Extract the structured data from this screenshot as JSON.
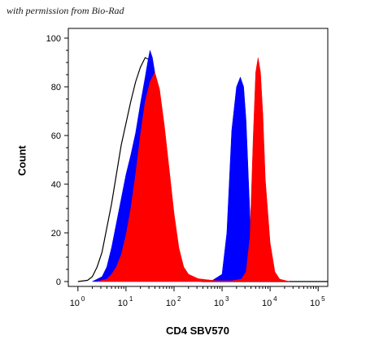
{
  "credit": "with permission from Bio-Rad",
  "chart_data": {
    "type": "area",
    "title": "",
    "xlabel": "CD4 SBV570",
    "ylabel": "Count",
    "xscale": "log",
    "xlim_log10": [
      -0.2,
      5.2
    ],
    "ylim": [
      -2,
      104
    ],
    "x_ticks": [
      {
        "base": "10",
        "exp": "0",
        "log": 0
      },
      {
        "base": "10",
        "exp": "1",
        "log": 1
      },
      {
        "base": "10",
        "exp": "2",
        "log": 2
      },
      {
        "base": "10",
        "exp": "3",
        "log": 3
      },
      {
        "base": "10",
        "exp": "4",
        "log": 4
      },
      {
        "base": "10",
        "exp": "5",
        "log": 5
      }
    ],
    "y_ticks": [
      {
        "label": "0",
        "value": 0
      },
      {
        "label": "20",
        "value": 20
      },
      {
        "label": "40",
        "value": 40
      },
      {
        "label": "60",
        "value": 60
      },
      {
        "label": "80",
        "value": 80
      },
      {
        "label": "100",
        "value": 100
      }
    ],
    "grid": false,
    "legend": "none",
    "series": [
      {
        "style": "outline",
        "color": "#000000",
        "points": [
          [
            0.0,
            0
          ],
          [
            0.2,
            0.5
          ],
          [
            0.3,
            2
          ],
          [
            0.4,
            6
          ],
          [
            0.5,
            12
          ],
          [
            0.6,
            22
          ],
          [
            0.7,
            32
          ],
          [
            0.8,
            44
          ],
          [
            0.9,
            56
          ],
          [
            1.0,
            65
          ],
          [
            1.1,
            74
          ],
          [
            1.2,
            82
          ],
          [
            1.3,
            88
          ],
          [
            1.4,
            92
          ],
          [
            1.5,
            91
          ],
          [
            1.55,
            86
          ],
          [
            1.6,
            78
          ],
          [
            1.7,
            60
          ],
          [
            1.8,
            40
          ],
          [
            1.9,
            22
          ],
          [
            2.0,
            11
          ],
          [
            2.1,
            5
          ],
          [
            2.2,
            2
          ],
          [
            2.4,
            0.5
          ],
          [
            2.6,
            0
          ],
          [
            5.2,
            0
          ]
        ]
      },
      {
        "style": "filled",
        "color": "#0000ff",
        "points": [
          [
            0.3,
            0
          ],
          [
            0.5,
            2
          ],
          [
            0.6,
            6
          ],
          [
            0.7,
            14
          ],
          [
            0.8,
            24
          ],
          [
            0.9,
            34
          ],
          [
            1.0,
            44
          ],
          [
            1.1,
            52
          ],
          [
            1.2,
            61
          ],
          [
            1.3,
            73
          ],
          [
            1.4,
            84
          ],
          [
            1.45,
            90
          ],
          [
            1.5,
            95
          ],
          [
            1.55,
            92
          ],
          [
            1.6,
            86
          ],
          [
            1.7,
            72
          ],
          [
            1.8,
            55
          ],
          [
            1.9,
            38
          ],
          [
            2.0,
            24
          ],
          [
            2.1,
            13
          ],
          [
            2.2,
            6
          ],
          [
            2.3,
            3
          ],
          [
            2.5,
            1
          ],
          [
            2.8,
            0.5
          ],
          [
            3.0,
            3
          ],
          [
            3.1,
            20
          ],
          [
            3.2,
            62
          ],
          [
            3.3,
            80
          ],
          [
            3.38,
            84
          ],
          [
            3.45,
            80
          ],
          [
            3.5,
            66
          ],
          [
            3.55,
            42
          ],
          [
            3.6,
            18
          ],
          [
            3.7,
            4
          ],
          [
            3.8,
            1
          ],
          [
            4.0,
            0
          ]
        ]
      },
      {
        "style": "filled",
        "color": "#ff0000",
        "points": [
          [
            0.4,
            0
          ],
          [
            0.6,
            1
          ],
          [
            0.7,
            3
          ],
          [
            0.8,
            6
          ],
          [
            0.9,
            11
          ],
          [
            1.0,
            19
          ],
          [
            1.1,
            30
          ],
          [
            1.2,
            44
          ],
          [
            1.3,
            60
          ],
          [
            1.4,
            74
          ],
          [
            1.5,
            82
          ],
          [
            1.6,
            86
          ],
          [
            1.7,
            79
          ],
          [
            1.8,
            64
          ],
          [
            1.9,
            46
          ],
          [
            2.0,
            28
          ],
          [
            2.1,
            14
          ],
          [
            2.2,
            6
          ],
          [
            2.3,
            3
          ],
          [
            2.5,
            1.2
          ],
          [
            2.7,
            0.7
          ],
          [
            2.9,
            0.3
          ],
          [
            3.2,
            0.3
          ],
          [
            3.4,
            1
          ],
          [
            3.5,
            4
          ],
          [
            3.58,
            18
          ],
          [
            3.65,
            60
          ],
          [
            3.7,
            86
          ],
          [
            3.75,
            92
          ],
          [
            3.8,
            86
          ],
          [
            3.85,
            68
          ],
          [
            3.9,
            42
          ],
          [
            4.0,
            16
          ],
          [
            4.1,
            4
          ],
          [
            4.2,
            1
          ],
          [
            4.4,
            0
          ]
        ]
      }
    ]
  }
}
